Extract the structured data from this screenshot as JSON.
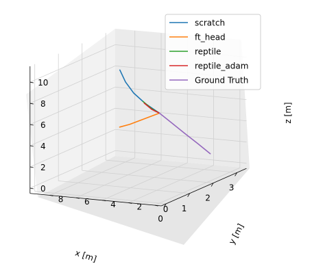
{
  "chart_data": {
    "type": "line",
    "projection": "3d",
    "xlabel": "x [m]",
    "ylabel": "y [m]",
    "zlabel": "z [m]",
    "x_ticks": [
      "0",
      "1",
      "2",
      "3"
    ],
    "y_ticks": [
      "0",
      "2",
      "4",
      "6",
      "8"
    ],
    "z_ticks": [
      "0",
      "2",
      "4",
      "6",
      "8",
      "10"
    ],
    "xlim": [
      -0.2,
      3.4
    ],
    "ylim": [
      -0.5,
      9.5
    ],
    "zlim": [
      -0.5,
      11.5
    ],
    "grid": true,
    "legend_position": "top-right",
    "series": [
      {
        "name": "scratch",
        "color": "#1f77b4",
        "points": [
          [
            0,
            0,
            8
          ],
          [
            0.15,
            1.35,
            8.6
          ],
          [
            0.3,
            2.5,
            9.3
          ],
          [
            0.45,
            3.4,
            10.1
          ],
          [
            0.6,
            4.1,
            11.0
          ]
        ]
      },
      {
        "name": "ft_head",
        "color": "#ff7f0e",
        "points": [
          [
            0,
            0,
            8
          ],
          [
            0.8,
            2.2,
            6.6
          ],
          [
            1.6,
            4.4,
            5.2
          ],
          [
            2.4,
            6.6,
            3.8
          ],
          [
            3.2,
            8.8,
            2.5
          ]
        ]
      },
      {
        "name": "reptile",
        "color": "#2ca02c",
        "points": [
          [
            0,
            0,
            8
          ],
          [
            0.15,
            0.9,
            8.2
          ],
          [
            0.3,
            1.8,
            8.6
          ]
        ]
      },
      {
        "name": "reptile_adam",
        "color": "#d62728",
        "points": [
          [
            0,
            0,
            8
          ],
          [
            0.15,
            0.85,
            8.1
          ],
          [
            0.3,
            1.7,
            8.45
          ]
        ]
      },
      {
        "name": "Ground Truth",
        "color": "#9467bd",
        "points": [
          [
            0,
            0,
            8
          ],
          [
            0.8,
            0.47,
            6.2
          ],
          [
            1.6,
            0.95,
            4.4
          ],
          [
            2.4,
            1.4,
            2.6
          ],
          [
            3.2,
            1.9,
            0.8
          ]
        ]
      }
    ]
  }
}
